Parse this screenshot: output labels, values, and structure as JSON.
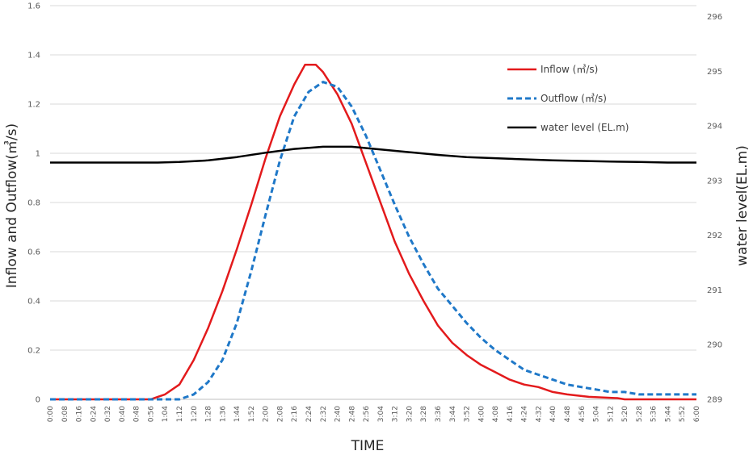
{
  "chart_data": {
    "type": "line",
    "xlabel": "TIME",
    "ylabel": "Inflow and Outflow(㎥/s)",
    "y2label": "water level(EL.m)",
    "ylim": [
      0,
      1.6
    ],
    "y_ticks": [
      "0",
      "0.2",
      "0.4",
      "0.6",
      "0.8",
      "1",
      "1.2",
      "1.4",
      "1.6"
    ],
    "y2lim": [
      289,
      296.2
    ],
    "y2_ticks": [
      "289",
      "290",
      "291",
      "292",
      "293",
      "294",
      "295",
      "296"
    ],
    "x_ticks": [
      "0:00",
      "0:08",
      "0:16",
      "0:24",
      "0:32",
      "0:40",
      "0:48",
      "0:56",
      "1:04",
      "1:12",
      "1:20",
      "1:28",
      "1:36",
      "1:44",
      "1:52",
      "2:00",
      "2:08",
      "2:16",
      "2:24",
      "2:32",
      "2:40",
      "2:48",
      "2:56",
      "3:04",
      "3:12",
      "3:20",
      "3:28",
      "3:36",
      "3:44",
      "3:52",
      "4:00",
      "4:08",
      "4:16",
      "4:24",
      "4:32",
      "4:40",
      "4:48",
      "4:56",
      "5:04",
      "5:12",
      "5:20",
      "5:28",
      "5:36",
      "5:44",
      "5:52",
      "6:00"
    ],
    "grid": true,
    "legend_position": "top-right",
    "series": [
      {
        "name": "Inflow (㎥/s)",
        "axis": "left",
        "color": "#e31a1c",
        "dash": "solid",
        "points": [
          [
            "0:00",
            0
          ],
          [
            "0:56",
            0
          ],
          [
            "1:00",
            0.01
          ],
          [
            "1:04",
            0.02
          ],
          [
            "1:12",
            0.06
          ],
          [
            "1:20",
            0.16
          ],
          [
            "1:28",
            0.29
          ],
          [
            "1:36",
            0.44
          ],
          [
            "1:44",
            0.61
          ],
          [
            "1:52",
            0.79
          ],
          [
            "2:00",
            0.98
          ],
          [
            "2:08",
            1.15
          ],
          [
            "2:16",
            1.28
          ],
          [
            "2:22",
            1.36
          ],
          [
            "2:28",
            1.36
          ],
          [
            "2:32",
            1.33
          ],
          [
            "2:40",
            1.24
          ],
          [
            "2:48",
            1.12
          ],
          [
            "2:56",
            0.96
          ],
          [
            "3:04",
            0.8
          ],
          [
            "3:12",
            0.64
          ],
          [
            "3:20",
            0.51
          ],
          [
            "3:28",
            0.4
          ],
          [
            "3:36",
            0.3
          ],
          [
            "3:44",
            0.23
          ],
          [
            "3:52",
            0.18
          ],
          [
            "4:00",
            0.14
          ],
          [
            "4:08",
            0.11
          ],
          [
            "4:16",
            0.08
          ],
          [
            "4:24",
            0.06
          ],
          [
            "4:32",
            0.05
          ],
          [
            "4:40",
            0.03
          ],
          [
            "4:48",
            0.02
          ],
          [
            "5:00",
            0.01
          ],
          [
            "5:16",
            0.005
          ],
          [
            "5:20",
            0
          ],
          [
            "6:00",
            0
          ]
        ]
      },
      {
        "name": "Outflow (㎥/s)",
        "axis": "left",
        "color": "#1f78c8",
        "dash": "dashed",
        "points": [
          [
            "0:00",
            0
          ],
          [
            "1:12",
            0
          ],
          [
            "1:20",
            0.02
          ],
          [
            "1:28",
            0.07
          ],
          [
            "1:36",
            0.16
          ],
          [
            "1:44",
            0.31
          ],
          [
            "1:52",
            0.52
          ],
          [
            "2:00",
            0.75
          ],
          [
            "2:08",
            0.97
          ],
          [
            "2:16",
            1.15
          ],
          [
            "2:24",
            1.25
          ],
          [
            "2:32",
            1.29
          ],
          [
            "2:40",
            1.27
          ],
          [
            "2:48",
            1.19
          ],
          [
            "2:56",
            1.07
          ],
          [
            "3:04",
            0.93
          ],
          [
            "3:12",
            0.79
          ],
          [
            "3:20",
            0.66
          ],
          [
            "3:28",
            0.55
          ],
          [
            "3:36",
            0.45
          ],
          [
            "3:44",
            0.38
          ],
          [
            "3:52",
            0.31
          ],
          [
            "4:00",
            0.25
          ],
          [
            "4:08",
            0.2
          ],
          [
            "4:16",
            0.16
          ],
          [
            "4:24",
            0.12
          ],
          [
            "4:32",
            0.1
          ],
          [
            "4:40",
            0.08
          ],
          [
            "4:48",
            0.06
          ],
          [
            "4:56",
            0.05
          ],
          [
            "5:04",
            0.04
          ],
          [
            "5:12",
            0.03
          ],
          [
            "5:20",
            0.03
          ],
          [
            "5:28",
            0.02
          ],
          [
            "5:40",
            0.02
          ],
          [
            "6:00",
            0.02
          ]
        ]
      },
      {
        "name": "water level (EL.m)",
        "axis": "right",
        "color": "#000000",
        "dash": "solid",
        "points": [
          [
            "0:00",
            293.33
          ],
          [
            "1:00",
            293.33
          ],
          [
            "1:12",
            293.34
          ],
          [
            "1:28",
            293.37
          ],
          [
            "1:44",
            293.43
          ],
          [
            "2:00",
            293.51
          ],
          [
            "2:16",
            293.58
          ],
          [
            "2:32",
            293.62
          ],
          [
            "2:48",
            293.62
          ],
          [
            "3:04",
            293.57
          ],
          [
            "3:20",
            293.52
          ],
          [
            "3:36",
            293.47
          ],
          [
            "3:52",
            293.43
          ],
          [
            "4:08",
            293.41
          ],
          [
            "4:24",
            293.39
          ],
          [
            "4:40",
            293.37
          ],
          [
            "4:56",
            293.36
          ],
          [
            "5:12",
            293.35
          ],
          [
            "5:28",
            293.34
          ],
          [
            "5:44",
            293.33
          ],
          [
            "6:00",
            293.33
          ]
        ]
      }
    ]
  }
}
